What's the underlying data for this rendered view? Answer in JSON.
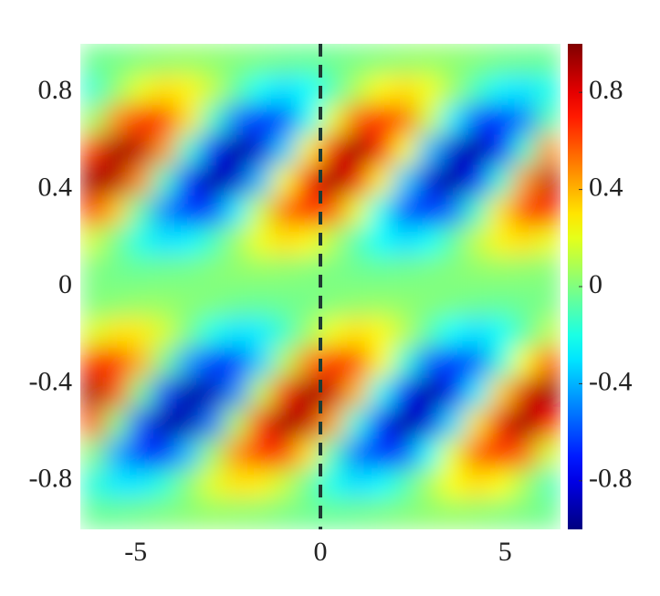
{
  "chart_data": {
    "type": "heatmap",
    "colormap": "jet",
    "xlim": [
      -6.5,
      6.5
    ],
    "ylim": [
      -1,
      1
    ],
    "clim": [
      -1,
      1
    ],
    "xticks": [
      -5,
      0,
      5
    ],
    "yticks": [
      -0.8,
      -0.4,
      0,
      0.4,
      0.8
    ],
    "cticks": [
      -0.8,
      -0.4,
      0,
      0.4,
      0.8
    ],
    "vlines": [
      0
    ],
    "x": [
      -6.175,
      -5.525,
      -4.875,
      -4.225,
      -3.575,
      -2.925,
      -2.275,
      -1.625,
      -0.975,
      -0.325,
      0.325,
      0.975,
      1.625,
      2.275,
      2.925,
      3.575,
      4.225,
      4.875,
      5.525,
      6.175
    ],
    "y": [
      0.9375,
      0.8125,
      0.6875,
      0.5625,
      0.4375,
      0.3125,
      0.1875,
      0.0625,
      -0.0625,
      -0.1875,
      -0.3125,
      -0.4375,
      -0.5625,
      -0.6875,
      -0.8125,
      -0.9375
    ],
    "z": [
      [
        -0.03,
        -0.02,
        0.01,
        0.03,
        0.04,
        0.03,
        0.01,
        -0.01,
        -0.03,
        -0.04,
        -0.03,
        -0.01,
        0.01,
        0.03,
        0.04,
        0.03,
        0.01,
        -0.02,
        -0.03,
        -0.04
      ],
      [
        -0.16,
        0.04,
        0.21,
        0.31,
        0.27,
        0.13,
        -0.07,
        -0.24,
        -0.31,
        -0.25,
        -0.1,
        0.1,
        0.26,
        0.31,
        0.23,
        0.06,
        -0.13,
        -0.27,
        -0.3,
        -0.21
      ],
      [
        0.06,
        0.47,
        0.68,
        0.62,
        0.3,
        -0.14,
        -0.52,
        -0.69,
        -0.58,
        -0.23,
        0.21,
        0.56,
        0.69,
        0.53,
        0.16,
        -0.28,
        -0.6,
        -0.68,
        -0.49,
        -0.09
      ],
      [
        0.63,
        0.94,
        0.87,
        0.44,
        -0.17,
        -0.71,
        -0.96,
        -0.82,
        -0.34,
        0.27,
        0.77,
        0.96,
        0.76,
        0.24,
        -0.37,
        -0.83,
        -0.95,
        -0.69,
        -0.14,
        0.46
      ],
      [
        0.94,
        0.88,
        0.46,
        -0.14,
        -0.69,
        -0.95,
        -0.83,
        -0.37,
        0.24,
        0.76,
        0.96,
        0.77,
        0.27,
        -0.34,
        -0.82,
        -0.96,
        -0.71,
        -0.17,
        0.44,
        0.87
      ],
      [
        0.64,
        0.35,
        -0.09,
        -0.48,
        -0.68,
        -0.6,
        -0.28,
        0.16,
        0.53,
        0.69,
        0.56,
        0.21,
        -0.23,
        -0.58,
        -0.69,
        -0.52,
        -0.14,
        0.3,
        0.62,
        0.68
      ],
      [
        0.16,
        -0.03,
        -0.21,
        -0.3,
        -0.27,
        -0.13,
        0.06,
        0.23,
        0.31,
        0.26,
        0.1,
        -0.1,
        -0.25,
        -0.31,
        -0.24,
        -0.07,
        0.13,
        0.27,
        0.31,
        0.21
      ],
      [
        0,
        -0.03,
        -0.04,
        -0.03,
        -0.02,
        0.01,
        0.03,
        0.04,
        0.03,
        0.01,
        -0.01,
        -0.03,
        -0.04,
        -0.03,
        -0.01,
        0.01,
        0.03,
        0.04,
        0.03,
        0.01
      ],
      [
        0,
        0.02,
        0.04,
        0.04,
        0.02,
        0,
        -0.03,
        -0.04,
        -0.03,
        -0.02,
        0.01,
        0.03,
        0.04,
        0.03,
        0.01,
        -0.01,
        -0.03,
        -0.04,
        -0.03,
        -0.01
      ],
      [
        0.18,
        0.3,
        0.29,
        0.17,
        -0.02,
        -0.21,
        -0.3,
        -0.28,
        -0.14,
        0.06,
        0.23,
        0.31,
        0.26,
        0.11,
        -0.09,
        -0.25,
        -0.31,
        -0.24,
        -0.08,
        0.12
      ],
      [
        0.65,
        0.66,
        0.39,
        -0.03,
        -0.44,
        -0.67,
        -0.63,
        -0.33,
        0.11,
        0.5,
        0.69,
        0.59,
        0.26,
        -0.18,
        -0.55,
        -0.69,
        -0.55,
        -0.19,
        0.25,
        0.59
      ],
      [
        0.92,
        0.56,
        -0.03,
        -0.6,
        -0.93,
        -0.88,
        -0.47,
        0.13,
        0.68,
        0.95,
        0.84,
        0.38,
        -0.23,
        -0.75,
        -0.96,
        -0.78,
        -0.28,
        0.33,
        0.81,
        0.96
      ],
      [
        0.58,
        0,
        -0.58,
        -0.93,
        -0.89,
        -0.5,
        0.1,
        0.66,
        0.95,
        0.85,
        0.41,
        -0.2,
        -0.73,
        -0.96,
        -0.8,
        -0.31,
        0.3,
        0.79,
        0.96,
        0.73
      ],
      [
        0.02,
        -0.41,
        -0.66,
        -0.65,
        -0.37,
        0.06,
        0.46,
        0.68,
        0.62,
        0.3,
        -0.13,
        -0.52,
        -0.69,
        -0.58,
        -0.24,
        0.21,
        0.56,
        0.69,
        0.54,
        0.16
      ],
      [
        -0.17,
        -0.29,
        -0.29,
        -0.17,
        0.02,
        0.2,
        0.3,
        0.28,
        0.14,
        -0.05,
        -0.22,
        -0.31,
        -0.26,
        -0.11,
        0.08,
        0.25,
        0.31,
        0.25,
        0.08,
        -0.11
      ],
      [
        -0.04,
        -0.04,
        -0.02,
        0,
        0.02,
        0.04,
        0.03,
        0.02,
        -0.01,
        -0.03,
        -0.04,
        -0.03,
        -0.01,
        0.01,
        0.03,
        0.04,
        0.03,
        0.01,
        -0.01,
        -0.03
      ]
    ]
  }
}
